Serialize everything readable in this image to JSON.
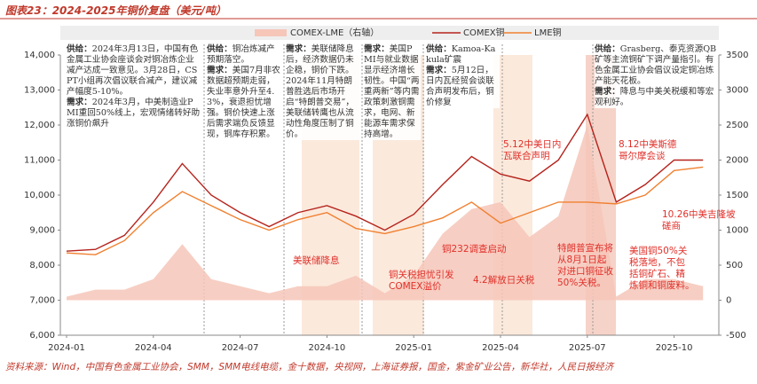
{
  "chart_data": {
    "type": "line",
    "title": "图表23：2024-2025年铜价复盘（美元/吨）",
    "source": "资料来源：Wind，中国有色金属工业协会，SMM，SMM电线电缆，金十数据，央视网，上海证券报，国金，紫金矿业公告，新华社，人民日报经济",
    "categories": [
      "2024-01",
      null,
      null,
      "2024-04",
      null,
      null,
      "2024-07",
      null,
      null,
      "2024-10",
      null,
      null,
      "2025-01",
      null,
      null,
      "2025-04",
      null,
      null,
      "2025-07",
      null,
      null,
      "2025-10",
      null
    ],
    "series": [
      {
        "name": "COMEX-LME（右轴）",
        "color": "#f6c6b9",
        "axis": "y2",
        "style": "area",
        "values": [
          50,
          150,
          150,
          300,
          800,
          300,
          200,
          100,
          200,
          200,
          350,
          100,
          350,
          950,
          1300,
          1400,
          900,
          1200,
          2500,
          50,
          300,
          300,
          200
        ]
      },
      {
        "name": "COMEX铜",
        "color": "#b5231c",
        "style": "line",
        "values": [
          8400,
          8450,
          8850,
          9800,
          10900,
          10000,
          9500,
          9100,
          9500,
          9700,
          9400,
          9000,
          9450,
          10300,
          11100,
          10600,
          10400,
          11000,
          12300,
          9800,
          10300,
          11000,
          11000
        ]
      },
      {
        "name": "LME铜",
        "color": "#f08030",
        "style": "line",
        "values": [
          8350,
          8300,
          8700,
          9500,
          10100,
          9700,
          9300,
          9000,
          9300,
          9500,
          9050,
          8900,
          9100,
          9350,
          9800,
          9200,
          9500,
          9800,
          9800,
          9750,
          10000,
          10700,
          10800
        ]
      }
    ],
    "ylim": [
      6000,
      14000
    ],
    "yticks": [
      {
        "value": 6000,
        "label": "6,000"
      },
      {
        "value": 7000,
        "label": "7,000"
      },
      {
        "value": 8000,
        "label": "8,000"
      },
      {
        "value": 9000,
        "label": "9,000"
      },
      {
        "value": 10000,
        "label": "10,000"
      },
      {
        "value": 11000,
        "label": "11,000"
      },
      {
        "value": 12000,
        "label": "12,000"
      },
      {
        "value": 13000,
        "label": "13,000"
      },
      {
        "value": 14000,
        "label": "14,000"
      }
    ],
    "y2lim": [
      -500,
      3500
    ],
    "y2ticks": [
      -500,
      0,
      500,
      1000,
      1500,
      2000,
      2500,
      3000,
      3500
    ],
    "annotations": [
      {
        "paragraphs": [
          {
            "label": "供给：",
            "text": "2024年3月13日，中国有色金属工业协会座谈会对铜冶炼企业减产达成一致意见。3月28日，CSPT小组再次倡议联合减产，建议减产幅度5-10%。"
          },
          {
            "label": "需求：",
            "text": "2024年3月，中美制造业PMI重回50%线上，宏观情绪转好助涨铜价飙升"
          }
        ]
      },
      {
        "paragraphs": [
          {
            "label": "供给：",
            "text": "铜冶炼减产预期落空。"
          },
          {
            "label": "需求：",
            "text": "美国7月非农数据超预期走弱，失业率意外升至4.3%，衰退担忧增强。铜价快速上涨后需求端负反馈显现，铜库存积累。"
          }
        ]
      },
      {
        "paragraphs": [
          {
            "label": "需求：",
            "text": "美联储降息后，经济数据仍未企稳，铜价下跌。"
          },
          {
            "label": "",
            "text": "2024年11月特朗普胜选后市场开启“特朗普交易”，美联储转鹰也从流动性角度压制了铜价。"
          }
        ]
      },
      {
        "paragraphs": [
          {
            "label": "需求：",
            "text": "美国PMI与就业数据显示经济增长韧性。中国“两重两新”等内需政策刺激铜需求，电网、新能源车需求保持高增。"
          }
        ]
      },
      {
        "paragraphs": [
          {
            "label": "供给：",
            "text": "Kamoa-Kakula矿震"
          },
          {
            "label": "需求：",
            "text": "5月12日，日内瓦经贸会谈联合声明发布后，铜价修复"
          }
        ]
      },
      {
        "paragraphs": [
          {
            "label": "供给：",
            "text": "Grasberg、泰克资源QB矿等主流铜矿下调产量指引。有色金属工业协会倡议设定铜冶炼产能天花板。"
          },
          {
            "label": "需求：",
            "text": "降息与中美关税缓和等宏观利好。"
          }
        ]
      }
    ],
    "callouts": [
      {
        "lines": [
          "美联储降息"
        ]
      },
      {
        "lines": [
          "铜关税担忧引发",
          "COMEX溢价"
        ]
      },
      {
        "lines": [
          "铜232调查启动"
        ]
      },
      {
        "lines": [
          "4.2解放日关税"
        ]
      },
      {
        "lines": [
          "5.12中美日内",
          "瓦联合声明"
        ]
      },
      {
        "lines": [
          "特朗普宣布将",
          "从8月1日起",
          "对进口铜征收",
          "50%关税。"
        ]
      },
      {
        "lines": [
          "8.12中美斯德",
          "哥尔摩会谈"
        ]
      },
      {
        "lines": [
          "美国铜50%关",
          "税落地，不包",
          "括铜矿石、精",
          "炼铜和铜废料。"
        ]
      },
      {
        "lines": [
          "10.26中美吉隆坡",
          "磋商"
        ]
      }
    ]
  }
}
